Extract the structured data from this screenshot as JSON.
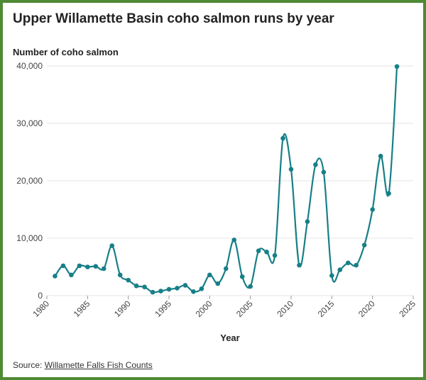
{
  "header": {
    "title": "Upper Willamette Basin coho salmon runs by year"
  },
  "footer": {
    "source_prefix": "Source: ",
    "source_link": "Willamette Falls Fish Counts"
  },
  "colors": {
    "line": "#177f87",
    "gridline": "#e6e6e6",
    "border": "#4f8a34"
  },
  "chart_data": {
    "type": "line",
    "title": "Upper Willamette Basin coho salmon runs by year",
    "ylabel": "Number of coho salmon",
    "xlabel": "Year",
    "xlim": [
      1980,
      2025
    ],
    "ylim": [
      0,
      40000
    ],
    "x_ticks": [
      1980,
      1985,
      1990,
      1995,
      2000,
      2005,
      2010,
      2015,
      2020,
      2025
    ],
    "x_tick_labels": [
      "1980",
      "1985",
      "1990",
      "1995",
      "2000",
      "2005",
      "2010",
      "2015",
      "2020",
      "2025"
    ],
    "y_ticks": [
      0,
      10000,
      20000,
      30000,
      40000
    ],
    "y_tick_labels": [
      "0",
      "10,000",
      "20,000",
      "30,000",
      "40,000"
    ],
    "grid": "horizontal",
    "legend": "none",
    "series": [
      {
        "x": [
          1981,
          1982,
          1983,
          1984,
          1985,
          1986,
          1987,
          1988,
          1989,
          1990,
          1991,
          1992,
          1993,
          1994,
          1995,
          1996,
          1997,
          1998,
          1999,
          2000,
          2001,
          2002,
          2003,
          2004,
          2005,
          2006,
          2007,
          2008,
          2009,
          2010,
          2011,
          2012,
          2013,
          2014,
          2015,
          2016,
          2017,
          2018,
          2019,
          2020,
          2021,
          2022,
          2023
        ],
        "values": [
          3400,
          5200,
          3600,
          5200,
          5000,
          5100,
          4700,
          8700,
          3600,
          2700,
          1700,
          1500,
          600,
          800,
          1100,
          1300,
          1800,
          700,
          1200,
          3600,
          2100,
          4700,
          9700,
          3300,
          1600,
          7800,
          7600,
          7000,
          27400,
          22000,
          5300,
          12900,
          22800,
          21500,
          3500,
          4500,
          5700,
          5300,
          8800,
          15000,
          24300,
          17800,
          39900
        ]
      }
    ]
  }
}
